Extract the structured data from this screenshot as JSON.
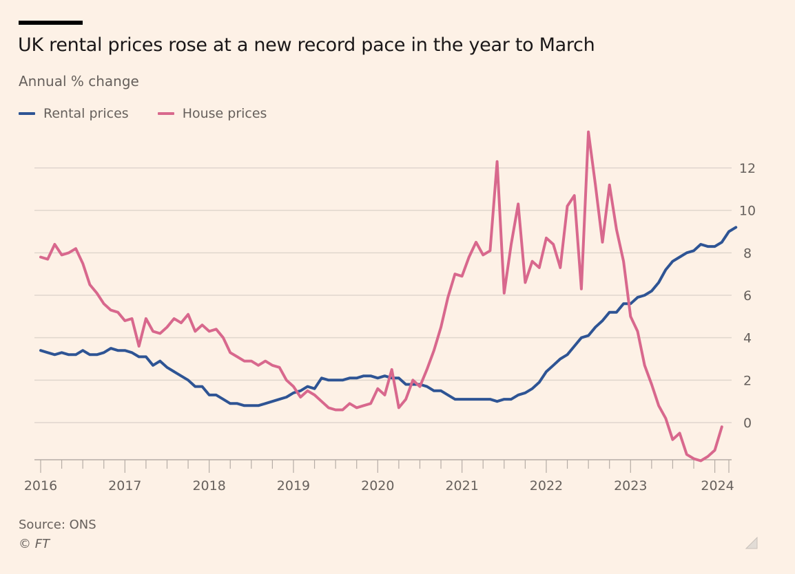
{
  "header": {
    "title": "UK rental prices rose at a new record pace in the year to March",
    "subtitle": "Annual % change"
  },
  "legend": [
    {
      "label": "Rental prices",
      "color": "#2e5494"
    },
    {
      "label": "House prices",
      "color": "#d8688d"
    }
  ],
  "footer": {
    "source": "Source: ONS",
    "copyright": "© FT"
  },
  "colors": {
    "background": "#fdf1e6",
    "grid": "#e0d6cd",
    "axis": "#b5aca5",
    "tick_text": "#66605c"
  },
  "chart_data": {
    "type": "line",
    "title": "UK rental prices rose at a new record pace in the year to March",
    "subtitle": "Annual % change",
    "xlabel": "",
    "ylabel": "Annual % change",
    "x_start": "2016-01",
    "x_frequency": "monthly",
    "x_ticks": [
      "2016",
      "2017",
      "2018",
      "2019",
      "2020",
      "2021",
      "2022",
      "2023",
      "2024"
    ],
    "y_ticks": [
      0,
      2,
      4,
      6,
      8,
      10,
      12
    ],
    "ylim": [
      -1.8,
      13.7
    ],
    "xlim": [
      "2016-01",
      "2024-03"
    ],
    "grid": true,
    "y_axis_position": "right",
    "legend_position": "top-left",
    "series": [
      {
        "name": "Rental prices",
        "color": "#2e5494",
        "values": [
          3.4,
          3.3,
          3.2,
          3.3,
          3.2,
          3.2,
          3.4,
          3.2,
          3.2,
          3.3,
          3.5,
          3.4,
          3.4,
          3.3,
          3.1,
          3.1,
          2.7,
          2.9,
          2.6,
          2.4,
          2.2,
          2.0,
          1.7,
          1.7,
          1.3,
          1.3,
          1.1,
          0.9,
          0.9,
          0.8,
          0.8,
          0.8,
          0.9,
          1.0,
          1.1,
          1.2,
          1.4,
          1.5,
          1.7,
          1.6,
          2.1,
          2.0,
          2.0,
          2.0,
          2.1,
          2.1,
          2.2,
          2.2,
          2.1,
          2.2,
          2.1,
          2.1,
          1.8,
          1.8,
          1.8,
          1.7,
          1.5,
          1.5,
          1.3,
          1.1,
          1.1,
          1.1,
          1.1,
          1.1,
          1.1,
          1.0,
          1.1,
          1.1,
          1.3,
          1.4,
          1.6,
          1.9,
          2.4,
          2.7,
          3.0,
          3.2,
          3.6,
          4.0,
          4.1,
          4.5,
          4.8,
          5.2,
          5.2,
          5.6,
          5.6,
          5.9,
          6.0,
          6.2,
          6.6,
          7.2,
          7.6,
          7.8,
          8.0,
          8.1,
          8.4,
          8.3,
          8.3,
          8.5,
          9.0,
          9.2
        ]
      },
      {
        "name": "House prices",
        "color": "#d8688d",
        "values": [
          7.8,
          7.7,
          8.4,
          7.9,
          8.0,
          8.2,
          7.5,
          6.5,
          6.1,
          5.6,
          5.3,
          5.2,
          4.8,
          4.9,
          3.6,
          4.9,
          4.3,
          4.2,
          4.5,
          4.9,
          4.7,
          5.1,
          4.3,
          4.6,
          4.3,
          4.4,
          4.0,
          3.3,
          3.1,
          2.9,
          2.9,
          2.7,
          2.9,
          2.7,
          2.6,
          2.0,
          1.7,
          1.2,
          1.5,
          1.3,
          1.0,
          0.7,
          0.6,
          0.6,
          0.9,
          0.7,
          0.8,
          0.9,
          1.6,
          1.3,
          2.5,
          0.7,
          1.1,
          2.0,
          1.7,
          2.5,
          3.4,
          4.5,
          5.9,
          7.0,
          6.9,
          7.8,
          8.5,
          7.9,
          8.1,
          12.3,
          6.1,
          8.4,
          10.3,
          6.6,
          7.6,
          7.3,
          8.7,
          8.4,
          7.3,
          10.2,
          10.7,
          6.3,
          13.7,
          11.2,
          8.5,
          11.2,
          9.1,
          7.6,
          5.0,
          4.3,
          2.7,
          1.8,
          0.8,
          0.2,
          -0.8,
          -0.5,
          -1.5,
          -1.7,
          -1.8,
          -1.6,
          -1.3,
          -0.2
        ]
      }
    ]
  }
}
